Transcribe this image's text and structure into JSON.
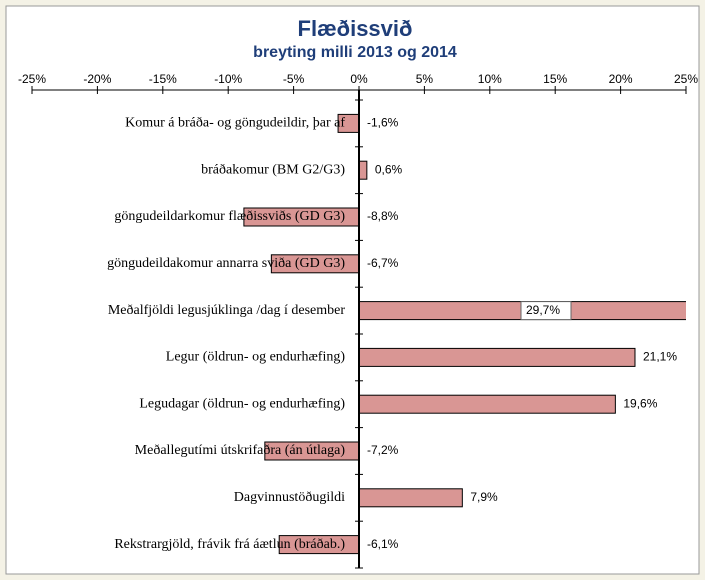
{
  "chart_data": {
    "type": "bar",
    "orientation": "horizontal",
    "title": "Flæðissvið",
    "subtitle": "breyting milli 2013 og 2014",
    "categories": [
      "Komur á bráða- og göngudeildir,  þar af",
      "bráðakomur (BM G2/G3)",
      "göngudeildarkomur flæðissviðs (GD G3)",
      "göngudeildakomur annarra sviða (GD G3)",
      "Meðalfjöldi legusjúklinga /dag í desember",
      "Legur (öldrun- og endurhæfing)",
      "Legudagar (öldrun- og endurhæfing)",
      "Meðallegutími útskrifaðra (án útlaga)",
      "Dagvinnustöðugildi",
      "Rekstrargjöld, frávik frá áætlun (bráðab.)"
    ],
    "values": [
      -1.6,
      0.6,
      -8.8,
      -6.7,
      29.7,
      21.1,
      19.6,
      -7.2,
      7.9,
      -6.1
    ],
    "value_labels": [
      "-1,6%",
      "0,6%",
      "-8,8%",
      "-6,7%",
      "29,7%",
      "21,1%",
      "19,6%",
      "-7,2%",
      "7,9%",
      "-6,1%"
    ],
    "color": "#d99694",
    "xlim": [
      -25,
      25
    ],
    "xticks": [
      {
        "value": -25,
        "label": "-25%"
      },
      {
        "value": -20,
        "label": "-20%"
      },
      {
        "value": -15,
        "label": "-15%"
      },
      {
        "value": -10,
        "label": "-10%"
      },
      {
        "value": -5,
        "label": "-5%"
      },
      {
        "value": 0,
        "label": "0%"
      },
      {
        "value": 5,
        "label": "5%"
      },
      {
        "value": 10,
        "label": "10%"
      },
      {
        "value": 15,
        "label": "15%"
      },
      {
        "value": 20,
        "label": "20%"
      },
      {
        "value": 25,
        "label": "25%"
      }
    ]
  }
}
